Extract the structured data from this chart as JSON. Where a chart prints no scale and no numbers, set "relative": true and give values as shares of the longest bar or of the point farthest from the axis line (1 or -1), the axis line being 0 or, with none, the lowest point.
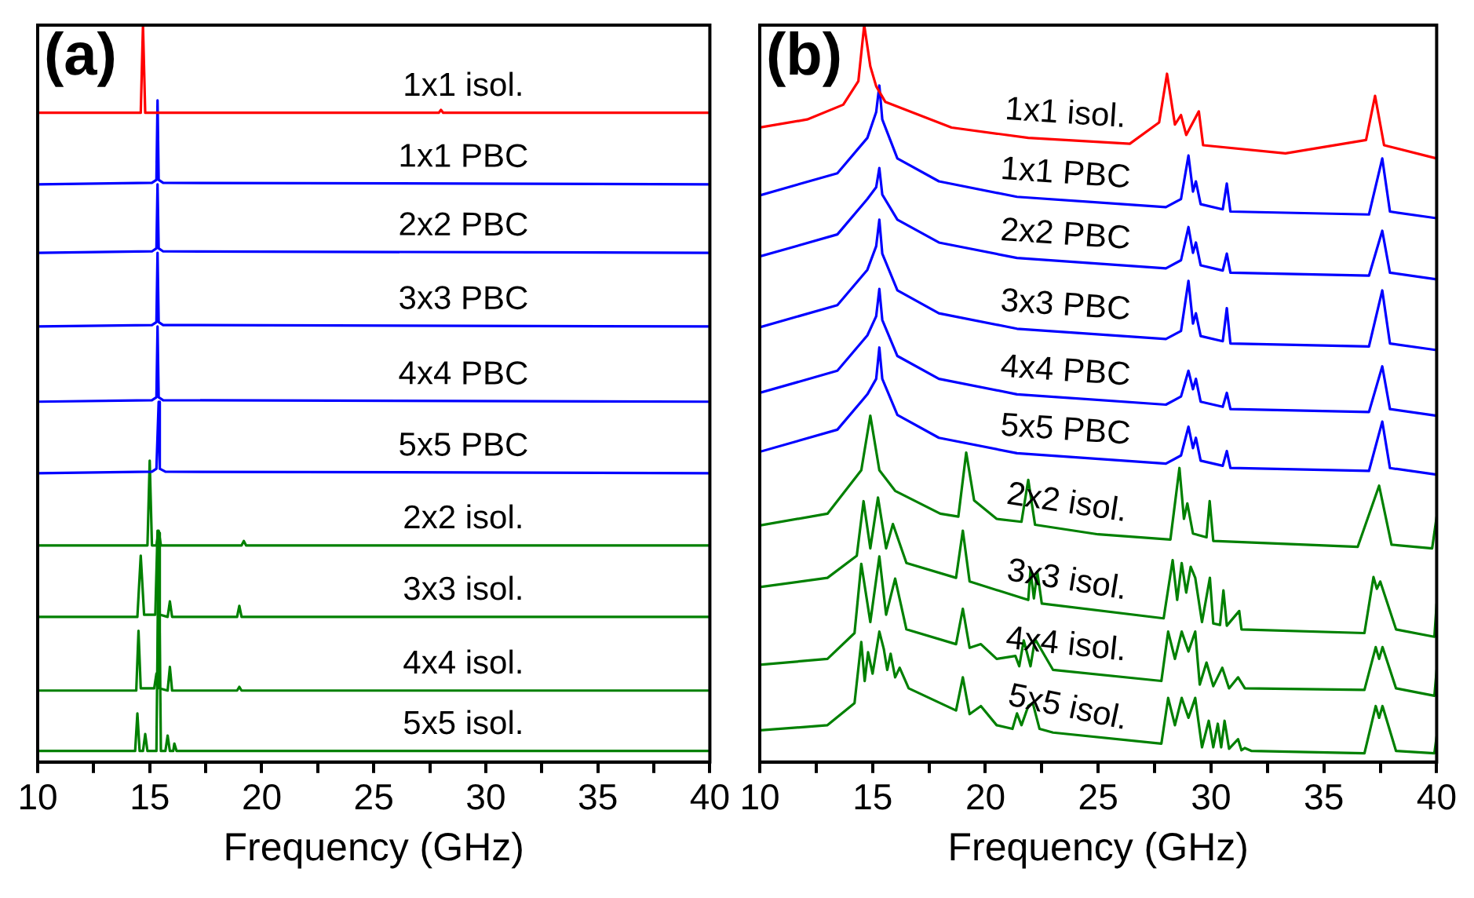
{
  "chart_data": [
    {
      "type": "line",
      "title": "(a)",
      "xlabel": "Frequency (GHz)",
      "xlim": [
        10,
        40
      ],
      "xticks": [
        10,
        {
          "value": 12.5,
          "label": null
        },
        15,
        {
          "value": 17.5,
          "label": null
        },
        20,
        {
          "value": 22.5,
          "label": null
        },
        25,
        {
          "value": 27.5,
          "label": null
        },
        30,
        {
          "value": 32.5,
          "label": null
        },
        35,
        {
          "value": 37.5,
          "label": null
        },
        40
      ],
      "relative": true,
      "tick_labels": "x",
      "legend": false,
      "grid": false,
      "marker": "none",
      "line_style": "solid",
      "series": [
        {
          "name": "1x1 isol.",
          "color": "#ff0000",
          "x": [
            10,
            14.6,
            14.7,
            14.8,
            27.9,
            28.0,
            28.1,
            40
          ],
          "values": [
            0.881,
            0.881,
            1.0,
            0.881,
            0.881,
            0.885,
            0.881,
            0.881
          ]
        },
        {
          "name": "1x1 PBC",
          "color": "#0000ff",
          "x": [
            10,
            15.1,
            15.3,
            15.35,
            15.4,
            15.6,
            40
          ],
          "values": [
            0.784,
            0.786,
            0.79,
            0.898,
            0.79,
            0.786,
            0.784
          ]
        },
        {
          "name": "2x2 PBC",
          "color": "#0000ff",
          "x": [
            10,
            15.1,
            15.3,
            15.35,
            15.4,
            15.6,
            40
          ],
          "values": [
            0.691,
            0.693,
            0.697,
            0.784,
            0.697,
            0.693,
            0.691
          ]
        },
        {
          "name": "3x3 PBC",
          "color": "#0000ff",
          "x": [
            10,
            15.1,
            15.3,
            15.35,
            15.4,
            15.6,
            40
          ],
          "values": [
            0.591,
            0.593,
            0.597,
            0.691,
            0.597,
            0.593,
            0.591
          ]
        },
        {
          "name": "4x4 PBC",
          "color": "#0000ff",
          "x": [
            10,
            15.1,
            15.3,
            15.35,
            15.4,
            15.6,
            40
          ],
          "values": [
            0.489,
            0.491,
            0.495,
            0.591,
            0.495,
            0.491,
            0.489
          ]
        },
        {
          "name": "5x5 PBC",
          "color": "#0000ff",
          "x": [
            10,
            15.1,
            15.3,
            15.4,
            15.45,
            15.7,
            40
          ],
          "values": [
            0.392,
            0.394,
            0.398,
            0.489,
            0.398,
            0.394,
            0.392
          ]
        },
        {
          "name": "2x2 isol.",
          "color": "#008000",
          "x": [
            10,
            14.9,
            15.0,
            15.1,
            15.3,
            15.4,
            15.5,
            19.1,
            19.2,
            19.3,
            40
          ],
          "values": [
            0.294,
            0.294,
            0.409,
            0.294,
            0.294,
            0.314,
            0.294,
            0.294,
            0.3,
            0.294,
            0.294
          ]
        },
        {
          "name": "3x3 isol.",
          "color": "#008000",
          "x": [
            10,
            14.45,
            14.6,
            14.75,
            15.25,
            15.35,
            15.45,
            15.8,
            15.9,
            16.0,
            18.9,
            19.0,
            19.1,
            40
          ],
          "values": [
            0.197,
            0.197,
            0.28,
            0.2,
            0.2,
            0.314,
            0.2,
            0.197,
            0.218,
            0.197,
            0.197,
            0.212,
            0.197,
            0.197
          ]
        },
        {
          "name": "4x4 isol.",
          "color": "#008000",
          "x": [
            10,
            14.4,
            14.5,
            14.6,
            15.2,
            15.3,
            15.35,
            15.4,
            15.45,
            15.8,
            15.9,
            16.0,
            18.9,
            19.0,
            19.1,
            40
          ],
          "values": [
            0.097,
            0.097,
            0.178,
            0.1,
            0.1,
            0.12,
            0.1,
            0.311,
            0.1,
            0.097,
            0.129,
            0.097,
            0.097,
            0.102,
            0.097,
            0.097
          ]
        },
        {
          "name": "5x5 isol.",
          "color": "#008000",
          "x": [
            10,
            14.35,
            14.45,
            14.55,
            14.7,
            14.8,
            14.9,
            15.3,
            15.4,
            15.5,
            15.7,
            15.8,
            15.9,
            16.05,
            16.1,
            16.2,
            40
          ],
          "values": [
            0.015,
            0.015,
            0.066,
            0.015,
            0.015,
            0.038,
            0.015,
            0.015,
            0.307,
            0.015,
            0.015,
            0.036,
            0.015,
            0.015,
            0.025,
            0.015,
            0.015
          ]
        }
      ]
    },
    {
      "type": "line",
      "title": "(b)",
      "xlabel": "Frequency (GHz)",
      "xlim": [
        10,
        40
      ],
      "xticks": [
        10,
        {
          "value": 12.5,
          "label": null
        },
        15,
        {
          "value": 17.5,
          "label": null
        },
        20,
        {
          "value": 22.5,
          "label": null
        },
        25,
        {
          "value": 27.5,
          "label": null
        },
        30,
        {
          "value": 32.5,
          "label": null
        },
        35,
        {
          "value": 37.5,
          "label": null
        },
        40
      ],
      "relative": true,
      "tick_labels": "x",
      "legend": false,
      "grid": false,
      "marker": "none",
      "line_style": "solid",
      "series": [
        {
          "name": "1x1 isol.",
          "color": "#ff0000",
          "x": [
            10,
            12.1,
            13.7,
            14.37,
            14.63,
            14.9,
            15.16,
            15.56,
            18.5,
            21.9,
            26.4,
            27.7,
            28.05,
            28.4,
            28.67,
            28.9,
            29.46,
            29.65,
            33.3,
            36.87,
            37.27,
            37.67,
            40
          ],
          "values": [
            0.861,
            0.872,
            0.892,
            0.924,
            1.0,
            0.944,
            0.917,
            0.896,
            0.861,
            0.847,
            0.839,
            0.868,
            0.934,
            0.865,
            0.878,
            0.851,
            0.883,
            0.837,
            0.826,
            0.844,
            0.904,
            0.837,
            0.819
          ]
        },
        {
          "name": "1x1 PBC",
          "color": "#0000ff",
          "x": [
            10,
            13.44,
            14.77,
            15.16,
            15.3,
            15.43,
            16.1,
            17.94,
            21.4,
            28,
            28.67,
            29,
            29.2,
            29.33,
            29.54,
            30.52,
            30.7,
            30.86,
            37,
            37.59,
            37.93,
            40
          ],
          "values": [
            0.769,
            0.799,
            0.847,
            0.882,
            0.918,
            0.872,
            0.819,
            0.788,
            0.767,
            0.753,
            0.764,
            0.823,
            0.774,
            0.788,
            0.757,
            0.75,
            0.785,
            0.747,
            0.743,
            0.819,
            0.747,
            0.738
          ]
        },
        {
          "name": "2x2 PBC",
          "color": "#0000ff",
          "x": [
            10,
            13.44,
            14.77,
            15.16,
            15.3,
            15.43,
            16.1,
            17.94,
            21.4,
            28,
            28.67,
            29,
            29.2,
            29.33,
            29.54,
            30.52,
            30.7,
            30.86,
            37,
            37.59,
            37.93,
            40
          ],
          "values": [
            0.686,
            0.716,
            0.764,
            0.78,
            0.806,
            0.77,
            0.736,
            0.705,
            0.684,
            0.67,
            0.681,
            0.726,
            0.691,
            0.705,
            0.674,
            0.667,
            0.69,
            0.664,
            0.66,
            0.721,
            0.664,
            0.655
          ]
        },
        {
          "name": "3x3 PBC",
          "color": "#0000ff",
          "x": [
            10,
            13.44,
            14.77,
            15.16,
            15.3,
            15.43,
            16.1,
            17.94,
            21.4,
            28,
            28.67,
            29,
            29.2,
            29.33,
            29.54,
            30.52,
            30.7,
            30.86,
            37,
            37.59,
            37.93,
            40
          ],
          "values": [
            0.59,
            0.62,
            0.668,
            0.7,
            0.736,
            0.69,
            0.64,
            0.609,
            0.588,
            0.574,
            0.585,
            0.653,
            0.595,
            0.609,
            0.578,
            0.571,
            0.616,
            0.568,
            0.564,
            0.64,
            0.568,
            0.559
          ]
        },
        {
          "name": "4x4 PBC",
          "color": "#0000ff",
          "x": [
            10,
            13.44,
            14.77,
            15.16,
            15.3,
            15.43,
            16.1,
            17.94,
            21.4,
            28,
            28.67,
            29,
            29.2,
            29.33,
            29.54,
            30.52,
            30.7,
            30.86,
            37,
            37.59,
            37.93,
            40
          ],
          "values": [
            0.501,
            0.531,
            0.579,
            0.605,
            0.642,
            0.6,
            0.551,
            0.52,
            0.499,
            0.485,
            0.496,
            0.531,
            0.506,
            0.52,
            0.489,
            0.482,
            0.501,
            0.479,
            0.475,
            0.537,
            0.479,
            0.47
          ]
        },
        {
          "name": "5x5 PBC",
          "color": "#0000ff",
          "x": [
            10,
            13.44,
            14.77,
            15.16,
            15.3,
            15.43,
            16.1,
            17.94,
            21.4,
            28,
            28.67,
            29,
            29.2,
            29.33,
            29.54,
            30.52,
            30.7,
            30.86,
            37,
            37.59,
            37.93,
            40
          ],
          "values": [
            0.421,
            0.451,
            0.499,
            0.52,
            0.5625,
            0.52,
            0.471,
            0.44,
            0.419,
            0.405,
            0.416,
            0.455,
            0.426,
            0.44,
            0.409,
            0.402,
            0.422,
            0.399,
            0.395,
            0.462,
            0.399,
            0.39
          ]
        },
        {
          "name": "2x2 isol.",
          "color": "#008000",
          "x": [
            10,
            13,
            14.5,
            14.9,
            15.3,
            16,
            18,
            18.8,
            19.15,
            19.5,
            20.5,
            21.6,
            21.9,
            22.2,
            25,
            28.2,
            28.6,
            28.8,
            28.95,
            29.2,
            29.8,
            29.94,
            30.1,
            36.5,
            37.45,
            38,
            39.8,
            40
          ],
          "values": [
            0.321,
            0.337,
            0.396,
            0.47,
            0.396,
            0.368,
            0.337,
            0.333,
            0.42,
            0.355,
            0.33,
            0.326,
            0.383,
            0.322,
            0.309,
            0.302,
            0.399,
            0.33,
            0.351,
            0.31,
            0.305,
            0.354,
            0.3,
            0.292,
            0.375,
            0.295,
            0.29,
            0.333
          ]
        },
        {
          "name": "3x3 isol.",
          "color": "#008000",
          "x": [
            10,
            13,
            14.3,
            14.6,
            14.9,
            15.24,
            15.6,
            15.9,
            16.5,
            18.7,
            19.0,
            19.3,
            21.9,
            22.0,
            22.15,
            22.3,
            22.5,
            27.9,
            28.3,
            28.5,
            28.7,
            28.9,
            29.1,
            29.3,
            29.6,
            29.95,
            30.1,
            30.4,
            30.55,
            30.7,
            31.25,
            31.35,
            36.8,
            37.2,
            37.35,
            37.5,
            38.2,
            39.9,
            40
          ],
          "values": [
            0.2375,
            0.25,
            0.28,
            0.354,
            0.29,
            0.359,
            0.29,
            0.323,
            0.27,
            0.25,
            0.314,
            0.245,
            0.22,
            0.26,
            0.222,
            0.258,
            0.215,
            0.195,
            0.274,
            0.22,
            0.27,
            0.23,
            0.265,
            0.25,
            0.19,
            0.25,
            0.188,
            0.186,
            0.233,
            0.185,
            0.205,
            0.18,
            0.175,
            0.251,
            0.235,
            0.245,
            0.18,
            0.17,
            0.215
          ]
        },
        {
          "name": "4x4 isol.",
          "color": "#008000",
          "x": [
            10,
            13,
            14.2,
            14.5,
            14.9,
            15.3,
            15.6,
            16.0,
            16.5,
            18.7,
            19.0,
            19.3,
            19.8,
            20.5,
            21.33,
            21.5,
            21.7,
            22.0,
            22.2,
            23,
            27.8,
            28.1,
            28.4,
            28.7,
            29.0,
            29.3,
            29.5,
            29.8,
            30.1,
            30.5,
            30.8,
            31.2,
            31.5,
            36.8,
            37.3,
            37.45,
            37.6,
            38.2,
            39.9,
            40
          ],
          "values": [
            0.132,
            0.14,
            0.175,
            0.269,
            0.19,
            0.279,
            0.2,
            0.249,
            0.18,
            0.16,
            0.208,
            0.155,
            0.16,
            0.14,
            0.144,
            0.13,
            0.165,
            0.13,
            0.167,
            0.125,
            0.11,
            0.177,
            0.14,
            0.177,
            0.15,
            0.177,
            0.105,
            0.135,
            0.103,
            0.128,
            0.1,
            0.115,
            0.1,
            0.098,
            0.156,
            0.14,
            0.156,
            0.1,
            0.09,
            0.125
          ]
        },
        {
          "name": "5x5 isol.",
          "color": "#008000",
          "x": [
            10,
            13,
            14.2,
            14.5,
            14.65,
            14.8,
            15.0,
            15.3,
            15.5,
            15.65,
            15.8,
            16.0,
            16.2,
            16.6,
            18.7,
            19.0,
            19.3,
            19.8,
            20.5,
            21.2,
            21.4,
            21.6,
            21.9,
            22.1,
            22.4,
            23,
            27.8,
            28.1,
            28.4,
            28.7,
            29.0,
            29.3,
            29.6,
            29.9,
            30.1,
            30.3,
            30.45,
            30.6,
            30.8,
            31.2,
            31.35,
            31.5,
            31.8,
            36.8,
            37.3,
            37.45,
            37.6,
            38.2,
            39.9,
            40
          ],
          "values": [
            0.043,
            0.05,
            0.08,
            0.163,
            0.11,
            0.149,
            0.12,
            0.177,
            0.153,
            0.125,
            0.147,
            0.115,
            0.128,
            0.1,
            0.07,
            0.115,
            0.065,
            0.076,
            0.05,
            0.045,
            0.066,
            0.05,
            0.076,
            0.08,
            0.045,
            0.04,
            0.025,
            0.087,
            0.05,
            0.087,
            0.06,
            0.087,
            0.02,
            0.056,
            0.02,
            0.052,
            0.02,
            0.056,
            0.018,
            0.031,
            0.016,
            0.019,
            0.015,
            0.012,
            0.076,
            0.06,
            0.076,
            0.015,
            0.012,
            0.035
          ]
        }
      ]
    }
  ]
}
